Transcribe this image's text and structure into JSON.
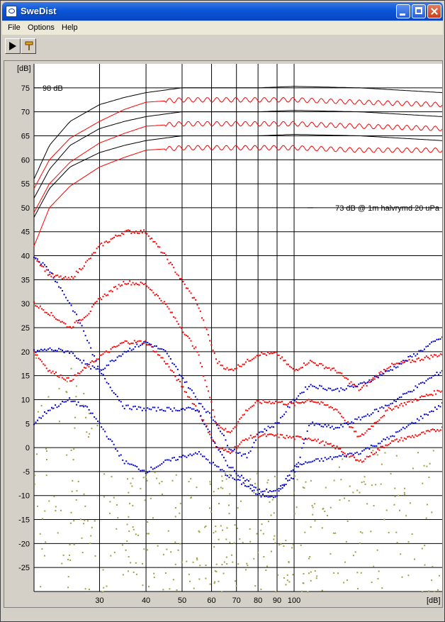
{
  "window": {
    "title": "SweDist",
    "menu": [
      "File",
      "Options",
      "Help"
    ],
    "toolbar_icons": [
      "play-icon",
      "probe-icon"
    ]
  },
  "chart_data": {
    "type": "scatter",
    "title": "",
    "xlabel": "[dB]",
    "ylabel": "[dB]",
    "xscale": "log",
    "xlim": [
      20,
      250
    ],
    "ylim": [
      -30,
      80
    ],
    "grid": true,
    "y_ticks": [
      75,
      70,
      65,
      60,
      55,
      50,
      45,
      40,
      35,
      30,
      25,
      20,
      15,
      10,
      5,
      0,
      -5,
      -10,
      -15,
      -20,
      -25
    ],
    "x_ticks": [
      30,
      40,
      50,
      60,
      70,
      80,
      90,
      100
    ],
    "annotations": [
      {
        "text": "98 dB",
        "x": 20,
        "y": 75
      },
      {
        "text": "73 dB @ 1m halvrymd 20 uPa",
        "x": 250,
        "y": 50
      }
    ],
    "colors": {
      "level": "#000000",
      "fundamental": "#ff0000",
      "h2": "#0000cc",
      "h3": "#a0a040",
      "grid": "#000000"
    },
    "series": [
      {
        "kind": "level",
        "color": "#000000",
        "x": [
          20,
          22,
          25,
          30,
          35,
          40,
          50,
          60,
          80,
          100,
          150,
          250
        ],
        "y": [
          56,
          63,
          68,
          71.5,
          73,
          74,
          75,
          75,
          75,
          75.3,
          75,
          74
        ]
      },
      {
        "kind": "level",
        "color": "#000000",
        "x": [
          20,
          22,
          25,
          30,
          35,
          40,
          50,
          60,
          80,
          100,
          150,
          250
        ],
        "y": [
          52,
          58,
          63,
          66.5,
          68,
          69,
          70,
          70,
          70,
          70.3,
          70,
          69
        ]
      },
      {
        "kind": "level",
        "color": "#000000",
        "x": [
          20,
          22,
          25,
          30,
          35,
          40,
          50,
          60,
          80,
          100,
          150,
          250
        ],
        "y": [
          48,
          54,
          58.5,
          61.5,
          63,
          64,
          65,
          65,
          65,
          65.3,
          65,
          64
        ]
      },
      {
        "kind": "fundamental",
        "color": "#ff0000",
        "x": [
          20,
          22,
          25,
          30,
          35,
          40,
          50,
          60,
          80,
          100,
          150,
          250
        ],
        "y": [
          54,
          60,
          64.5,
          68,
          70.5,
          72,
          72.5,
          72.5,
          72.5,
          72.5,
          72,
          71.5
        ]
      },
      {
        "kind": "fundamental",
        "color": "#ff0000",
        "x": [
          20,
          22,
          25,
          30,
          35,
          40,
          50,
          60,
          80,
          100,
          150,
          250
        ],
        "y": [
          49,
          55,
          59.5,
          63.5,
          65.5,
          67,
          67.5,
          67.5,
          67.5,
          67.5,
          67,
          66.5
        ]
      },
      {
        "kind": "fundamental",
        "color": "#ff0000",
        "x": [
          20,
          22,
          25,
          30,
          35,
          40,
          50,
          60,
          80,
          100,
          150,
          250
        ],
        "y": [
          42,
          50,
          54.5,
          58.5,
          60.5,
          62,
          62.5,
          62.5,
          62.5,
          62.5,
          62,
          62
        ]
      },
      {
        "kind": "h2",
        "color": "#ff0000",
        "x": [
          20,
          22,
          25,
          28,
          30,
          35,
          40,
          45,
          55,
          62,
          67,
          75,
          80,
          90,
          100,
          110,
          130,
          150,
          180,
          250
        ],
        "y": [
          40,
          36,
          35,
          39,
          42,
          45,
          45,
          40,
          30,
          18,
          16,
          18,
          19.5,
          19.5,
          16,
          18,
          16,
          12,
          17,
          19.5
        ]
      },
      {
        "kind": "h2",
        "color": "#ff0000",
        "x": [
          20,
          22,
          25,
          28,
          30,
          35,
          40,
          45,
          55,
          62,
          67,
          75,
          80,
          90,
          100,
          110,
          130,
          150,
          180,
          250
        ],
        "y": [
          30,
          28,
          25,
          28,
          31,
          34.5,
          34,
          30,
          20,
          5,
          3,
          8,
          9.5,
          9.5,
          9,
          10,
          8,
          2,
          8,
          12
        ]
      },
      {
        "kind": "h2",
        "color": "#ff0000",
        "x": [
          20,
          22,
          25,
          28,
          30,
          35,
          40,
          45,
          55,
          62,
          67,
          75,
          80,
          90,
          100,
          110,
          130,
          150,
          180,
          250
        ],
        "y": [
          20,
          16,
          14,
          17,
          19,
          22,
          22,
          18,
          8,
          0,
          -1,
          2,
          2.5,
          2.5,
          2,
          2,
          0,
          -3,
          1,
          4
        ]
      },
      {
        "kind": "h3",
        "color": "#0000cc",
        "x": [
          20,
          22,
          25,
          27,
          30,
          35,
          40,
          45,
          55,
          62,
          67,
          75,
          80,
          90,
          100,
          110,
          130,
          150,
          180,
          250
        ],
        "y": [
          40,
          37,
          30,
          25,
          16,
          20,
          22,
          20,
          10,
          5,
          0,
          -2,
          3,
          5,
          10,
          13,
          12,
          13,
          16,
          23
        ]
      },
      {
        "kind": "h3",
        "color": "#0000cc",
        "x": [
          20,
          22,
          25,
          28,
          30,
          35,
          40,
          45,
          55,
          62,
          67,
          75,
          80,
          90,
          100,
          110,
          130,
          150,
          180,
          250
        ],
        "y": [
          20,
          20.5,
          20,
          17,
          16,
          8.5,
          8,
          8,
          8,
          0,
          -4,
          -7,
          -9,
          -9,
          -6,
          5,
          4,
          6,
          9,
          16
        ]
      },
      {
        "kind": "h3",
        "color": "#0000cc",
        "x": [
          20,
          22,
          25,
          28,
          30,
          35,
          40,
          45,
          55,
          62,
          67,
          75,
          80,
          90,
          100,
          110,
          130,
          150,
          180,
          250
        ],
        "y": [
          5,
          8,
          10,
          8,
          5,
          -3,
          -5,
          -3,
          -1,
          -4,
          -6,
          -8,
          -10,
          -10,
          -4,
          -3,
          -2,
          -1,
          2,
          9
        ]
      }
    ],
    "noise": {
      "kind": "h3-floor",
      "color": "#a0a040"
    }
  }
}
